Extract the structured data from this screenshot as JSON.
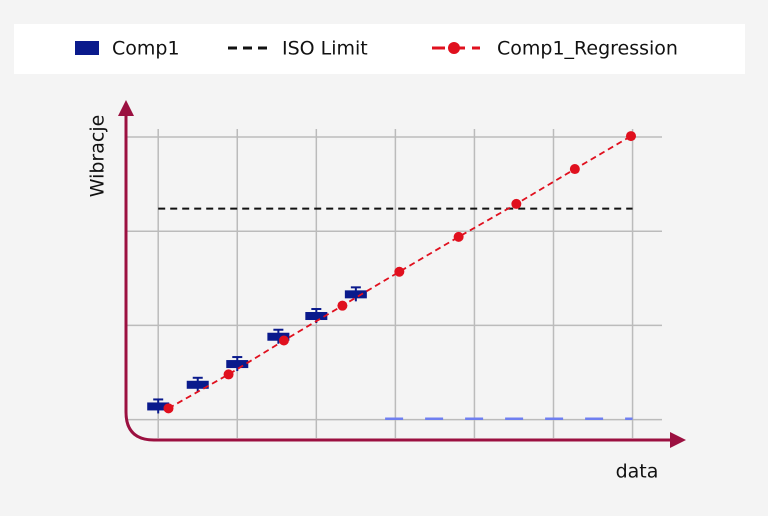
{
  "chart_data": {
    "type": "scatter",
    "x_label": "data",
    "y_label": "Wibracje",
    "xlim": [
      -0.42,
      6.6
    ],
    "ylim": [
      -0.11,
      3.34
    ],
    "grid_x": [
      0,
      1,
      2,
      3,
      4,
      5,
      6
    ],
    "grid_y": [
      0,
      1,
      2,
      3
    ],
    "series": [
      {
        "name": "Comp1",
        "color": "#0a1a8c",
        "marker": "box",
        "x": [
          0,
          0.5,
          1.0,
          1.52,
          2.0,
          2.5
        ],
        "values": [
          0.14,
          0.37,
          0.59,
          0.88,
          1.1,
          1.33
        ]
      },
      {
        "name": "ISO Limit",
        "color": "#111111",
        "marker": "hline",
        "x": [
          0,
          6
        ],
        "values": [
          2.24,
          2.24
        ]
      },
      {
        "name": "Comp1_Regression",
        "color": "#e0101e",
        "marker": "dot-line",
        "x": [
          0.13,
          0.89,
          1.59,
          2.33,
          3.05,
          3.8,
          4.53,
          5.27,
          5.98
        ],
        "values": [
          0.12,
          0.48,
          0.84,
          1.21,
          1.57,
          1.94,
          2.29,
          2.66,
          3.01
        ]
      }
    ],
    "lower_line": {
      "color": "#6f7ff0",
      "x": [
        2.87,
        6
      ],
      "values": [
        0.01,
        0.01
      ]
    }
  }
}
